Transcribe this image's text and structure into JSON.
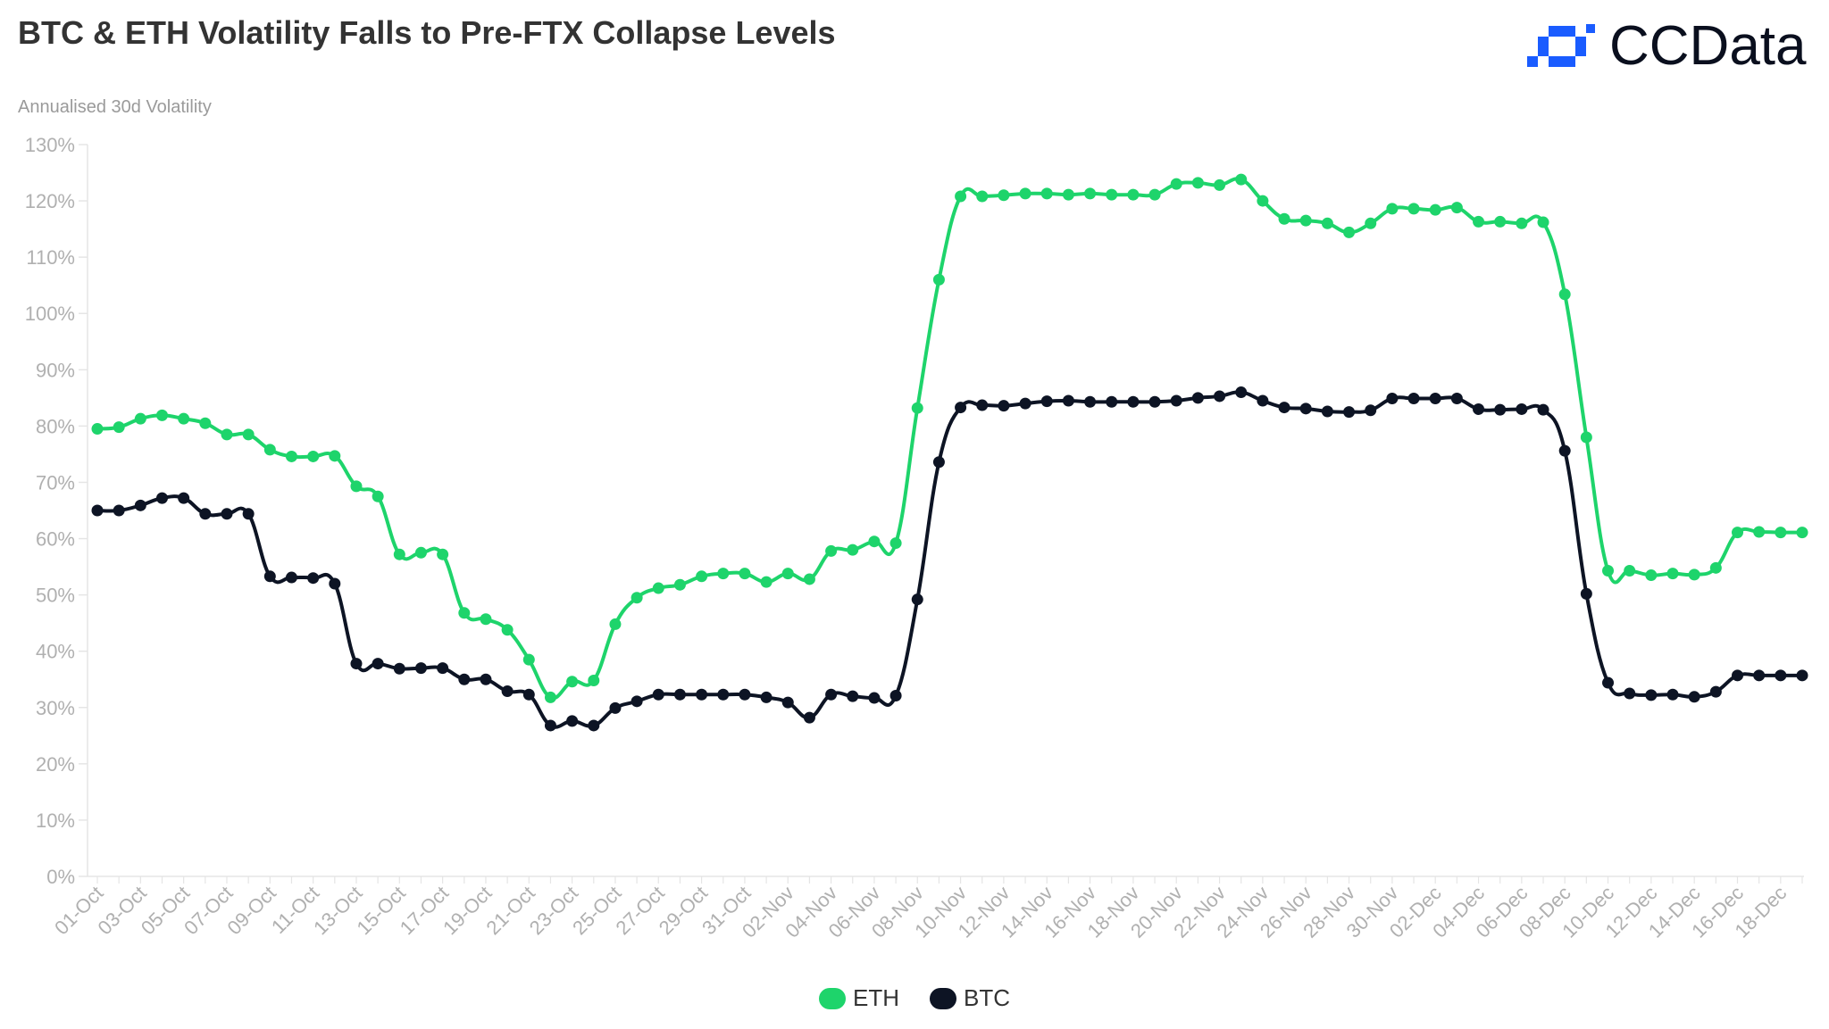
{
  "title": "BTC & ETH Volatility Falls to Pre-FTX Collapse Levels",
  "brand": {
    "name": "CCData",
    "color": "#1a5cff"
  },
  "colors": {
    "ETH": "#1ed46b",
    "BTC": "#0d1424",
    "axis": "#e5e5e5",
    "tick": "#b0b0b0"
  },
  "legend": [
    {
      "name": "ETH",
      "color": "#1ed46b"
    },
    {
      "name": "BTC",
      "color": "#0d1424"
    }
  ],
  "chart_data": {
    "type": "line",
    "title": "BTC & ETH Volatility Falls to Pre-FTX Collapse Levels",
    "ylabel": "Annualised 30d Volatility",
    "xlabel": "",
    "ylim": [
      0,
      130
    ],
    "yticks": [
      "0%",
      "10%",
      "20%",
      "30%",
      "40%",
      "50%",
      "60%",
      "70%",
      "80%",
      "90%",
      "100%",
      "110%",
      "120%",
      "130%"
    ],
    "xtick_labels": [
      "01-Oct",
      "03-Oct",
      "05-Oct",
      "07-Oct",
      "09-Oct",
      "11-Oct",
      "13-Oct",
      "15-Oct",
      "17-Oct",
      "19-Oct",
      "21-Oct",
      "23-Oct",
      "25-Oct",
      "27-Oct",
      "29-Oct",
      "31-Oct",
      "02-Nov",
      "04-Nov",
      "06-Nov",
      "08-Nov",
      "10-Nov",
      "12-Nov",
      "14-Nov",
      "16-Nov",
      "18-Nov",
      "20-Nov",
      "22-Nov",
      "24-Nov",
      "26-Nov",
      "28-Nov",
      "30-Nov",
      "02-Dec",
      "04-Dec",
      "06-Dec",
      "08-Dec",
      "10-Dec",
      "12-Dec",
      "14-Dec",
      "16-Dec",
      "18-Dec"
    ],
    "legend_position": "bottom",
    "grid": false,
    "series": [
      {
        "name": "ETH",
        "values": [
          79.5,
          79.8,
          81.3,
          81.9,
          81.3,
          80.5,
          78.5,
          78.5,
          75.8,
          74.6,
          74.6,
          74.7,
          69.3,
          67.5,
          57.2,
          57.5,
          57.2,
          46.8,
          45.7,
          43.8,
          38.5,
          31.8,
          34.6,
          34.8,
          44.8,
          49.5,
          51.2,
          51.8,
          53.3,
          53.8,
          53.8,
          52.3,
          53.8,
          52.8,
          57.8,
          58.0,
          59.5,
          59.2,
          83.2,
          106.0,
          120.8,
          120.8,
          121.0,
          121.3,
          121.3,
          121.1,
          121.3,
          121.1,
          121.1,
          121.1,
          123.0,
          123.2,
          122.8,
          123.8,
          120.0,
          116.8,
          116.5,
          116.0,
          114.4,
          116.0,
          118.6,
          118.6,
          118.4,
          118.8,
          116.3,
          116.3,
          116.0,
          116.2,
          103.4,
          78.0,
          54.3,
          54.3,
          53.5,
          53.8,
          53.6,
          54.8,
          61.1,
          61.2,
          61.1,
          61.1
        ]
      },
      {
        "name": "BTC",
        "values": [
          65.0,
          65.0,
          65.9,
          67.2,
          67.2,
          64.4,
          64.4,
          64.4,
          53.3,
          53.1,
          53.0,
          52.0,
          37.8,
          37.8,
          36.9,
          37.0,
          37.0,
          35.0,
          35.0,
          32.9,
          32.3,
          26.8,
          27.6,
          26.8,
          29.9,
          31.1,
          32.3,
          32.3,
          32.3,
          32.3,
          32.3,
          31.8,
          30.9,
          28.2,
          32.3,
          32.0,
          31.7,
          32.1,
          49.2,
          73.6,
          83.3,
          83.7,
          83.6,
          84.0,
          84.4,
          84.5,
          84.3,
          84.3,
          84.3,
          84.3,
          84.5,
          85.0,
          85.3,
          86.0,
          84.5,
          83.3,
          83.1,
          82.6,
          82.5,
          82.8,
          84.9,
          84.9,
          84.9,
          84.9,
          83.0,
          82.9,
          83.0,
          82.9,
          75.6,
          50.2,
          34.4,
          32.5,
          32.2,
          32.3,
          31.9,
          32.8,
          35.7,
          35.7,
          35.7,
          35.7
        ]
      }
    ]
  }
}
